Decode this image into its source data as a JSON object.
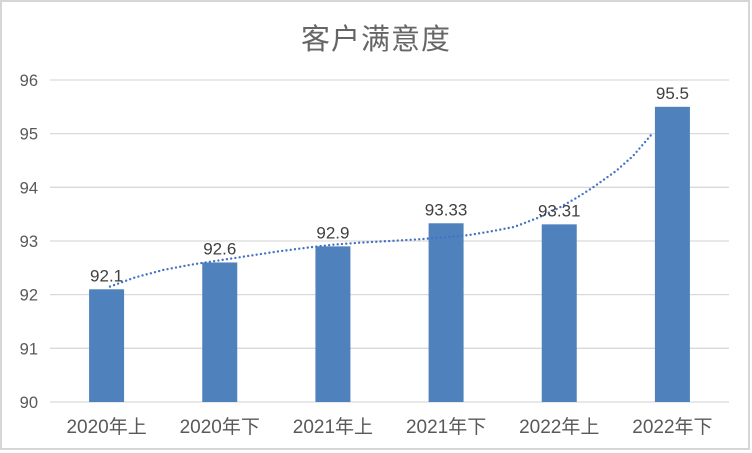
{
  "chart_data": {
    "type": "bar",
    "title": "客户满意度",
    "categories": [
      "2020年上",
      "2020年下",
      "2021年上",
      "2021年下",
      "2022年上",
      "2022年下"
    ],
    "values": [
      92.1,
      92.6,
      92.9,
      93.33,
      93.31,
      95.5
    ],
    "data_labels": [
      "92.1",
      "92.6",
      "92.9",
      "93.33",
      "93.31",
      "95.5"
    ],
    "ylim": [
      90,
      96
    ],
    "yticks": [
      90,
      91,
      92,
      93,
      94,
      95,
      96
    ],
    "grid": true,
    "legend": false,
    "bar_color": "#4f81bd",
    "trendline": {
      "style": "dotted",
      "color": "#4472c4",
      "points": [
        [
          0.53,
          92.15
        ],
        [
          0.75,
          92.32
        ],
        [
          1.0,
          92.46
        ],
        [
          1.25,
          92.56
        ],
        [
          1.5,
          92.64
        ],
        [
          1.75,
          92.72
        ],
        [
          2.0,
          92.8
        ],
        [
          2.25,
          92.87
        ],
        [
          2.5,
          92.93
        ],
        [
          2.75,
          92.97
        ],
        [
          3.0,
          93.0
        ],
        [
          3.25,
          93.03
        ],
        [
          3.5,
          93.07
        ],
        [
          3.7,
          93.11
        ],
        [
          3.9,
          93.18
        ],
        [
          4.1,
          93.26
        ],
        [
          4.3,
          93.42
        ],
        [
          4.5,
          93.62
        ],
        [
          4.65,
          93.8
        ],
        [
          4.8,
          94.0
        ],
        [
          5.0,
          94.3
        ],
        [
          5.15,
          94.58
        ],
        [
          5.33,
          95.02
        ]
      ]
    },
    "colors": {
      "grid": "#d9d9d9",
      "axis_text": "#595959",
      "data_label_text": "#404040",
      "title_text": "#666666",
      "background": "#ffffff"
    }
  }
}
